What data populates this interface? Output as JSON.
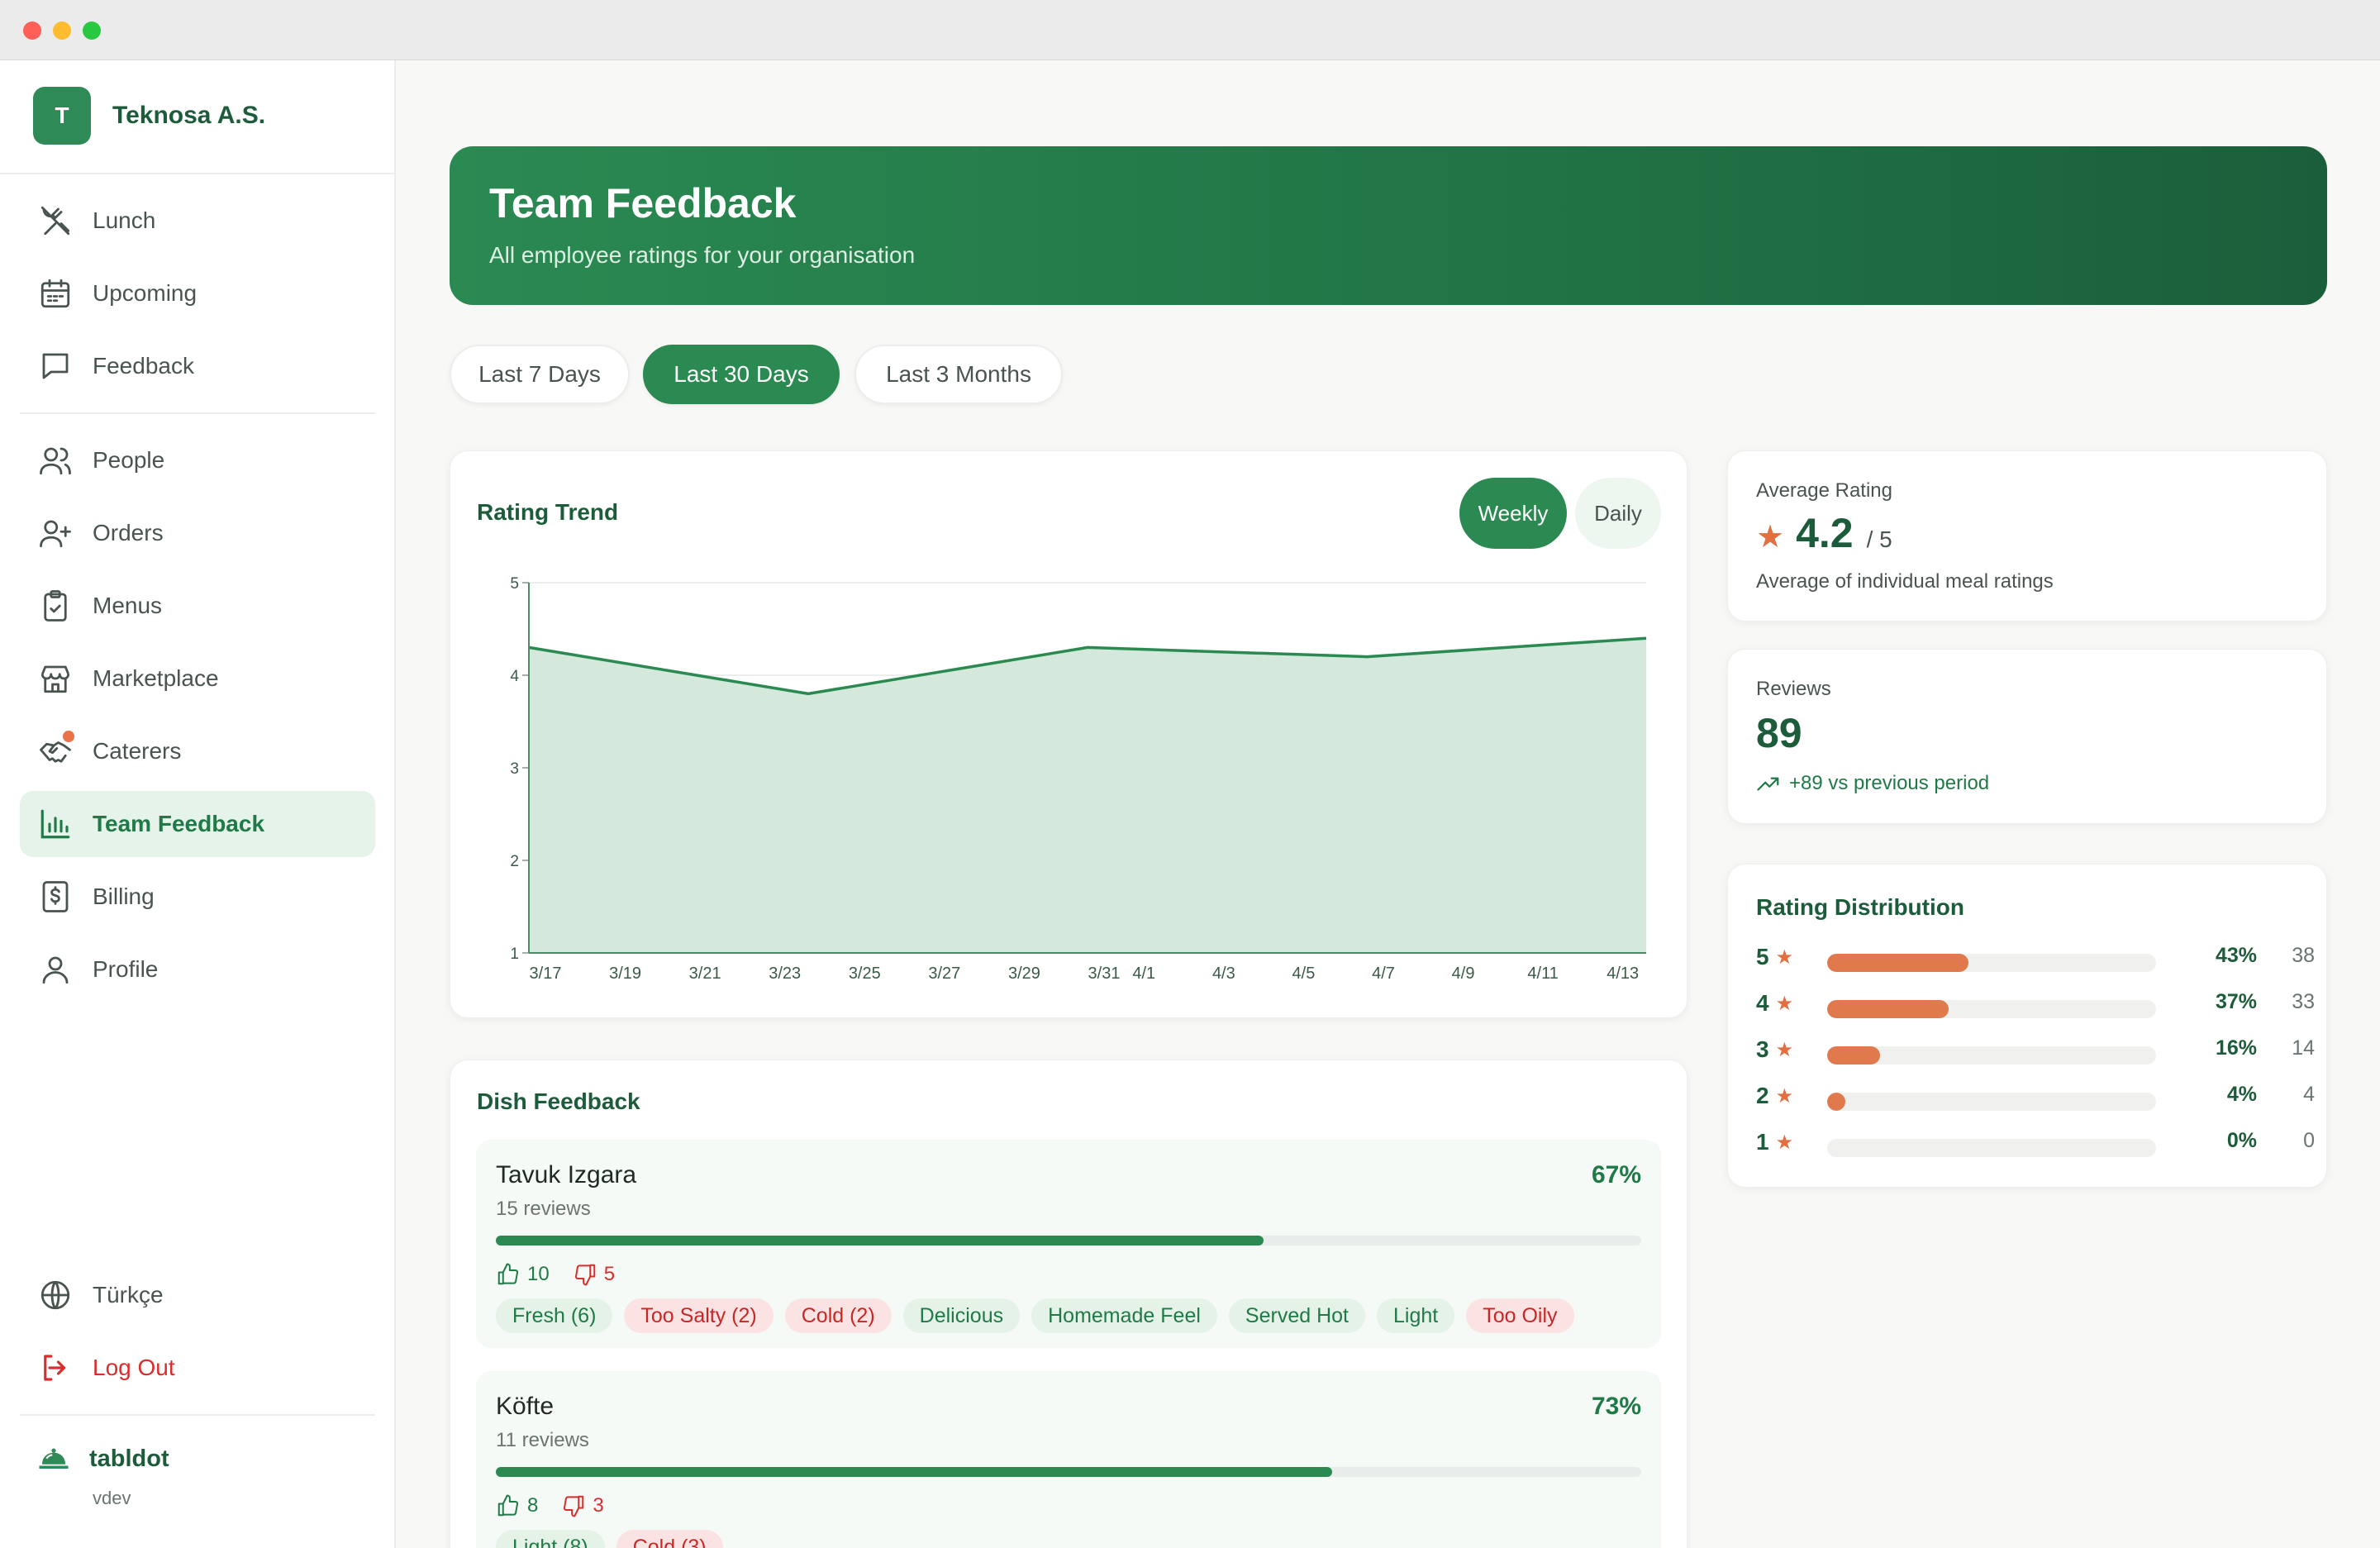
{
  "org": {
    "initial": "T",
    "name": "Teknosa A.S."
  },
  "nav": {
    "group1": [
      {
        "label": "Lunch",
        "icon": "utensils-icon"
      },
      {
        "label": "Upcoming",
        "icon": "calendar-icon"
      },
      {
        "label": "Feedback",
        "icon": "message-square-icon"
      }
    ],
    "group2": [
      {
        "label": "People",
        "icon": "users-icon"
      },
      {
        "label": "Orders",
        "icon": "user-plus-icon"
      },
      {
        "label": "Menus",
        "icon": "clipboard-icon"
      },
      {
        "label": "Marketplace",
        "icon": "store-icon"
      },
      {
        "label": "Caterers",
        "icon": "handshake-icon"
      },
      {
        "label": "Team Feedback",
        "icon": "bar-chart-icon"
      },
      {
        "label": "Billing",
        "icon": "receipt-dollar-icon"
      },
      {
        "label": "Profile",
        "icon": "user-icon"
      }
    ],
    "active": "Team Feedback",
    "language": "Türkçe",
    "logout": "Log Out"
  },
  "footer": {
    "name": "tabldot",
    "sub": "vdev"
  },
  "hero": {
    "title": "Team Feedback",
    "subtitle": "All employee ratings for your organisation"
  },
  "ranges": [
    "Last 7 Days",
    "Last 30 Days",
    "Last 3 Months"
  ],
  "active_range": "Last 30 Days",
  "trend": {
    "title": "Rating Trend",
    "toggle": [
      "Weekly",
      "Daily"
    ],
    "active_toggle": "Weekly"
  },
  "chart_data": {
    "type": "area",
    "title": "Rating Trend",
    "x": [
      "3/17",
      "3/24",
      "3/31",
      "4/7",
      "4/14"
    ],
    "values": [
      4.3,
      3.8,
      4.3,
      4.2,
      4.4
    ],
    "xticks": [
      "3/17",
      "3/19",
      "3/21",
      "3/23",
      "3/25",
      "3/27",
      "3/29",
      "3/31",
      "4/1",
      "4/3",
      "4/5",
      "4/7",
      "4/9",
      "4/11",
      "4/13"
    ],
    "yticks": [
      "1",
      "2",
      "3",
      "4",
      "5"
    ],
    "ylim": [
      1,
      5
    ],
    "grid": true,
    "color": "#2a8a52",
    "fill": "#d4e9dc"
  },
  "average": {
    "label": "Average Rating",
    "value": "4.2",
    "max": "/ 5",
    "note": "Average of individual meal ratings"
  },
  "reviews": {
    "label": "Reviews",
    "value": "89",
    "note": "+89 vs previous period"
  },
  "distribution": {
    "title": "Rating Distribution",
    "rows": [
      {
        "stars": "5",
        "pct": "43%",
        "fraction": 0.43,
        "count": "38"
      },
      {
        "stars": "4",
        "pct": "37%",
        "fraction": 0.37,
        "count": "33"
      },
      {
        "stars": "3",
        "pct": "16%",
        "fraction": 0.16,
        "count": "14"
      },
      {
        "stars": "2",
        "pct": "4%",
        "fraction": 0.04,
        "count": "4"
      },
      {
        "stars": "1",
        "pct": "0%",
        "fraction": 0.0,
        "count": "0"
      }
    ]
  },
  "dish_feedback": {
    "title": "Dish Feedback",
    "dishes": [
      {
        "name": "Tavuk Izgara",
        "reviews": "15 reviews",
        "pct": "67%",
        "fraction": 0.67,
        "up": "10",
        "down": "5",
        "tags": [
          {
            "label": "Fresh",
            "count": "(6)",
            "kind": "pos"
          },
          {
            "label": "Too Salty",
            "count": "(2)",
            "kind": "neg"
          },
          {
            "label": "Cold",
            "count": "(2)",
            "kind": "neg"
          },
          {
            "label": "Delicious",
            "count": "",
            "kind": "pos"
          },
          {
            "label": "Homemade Feel",
            "count": "",
            "kind": "pos"
          },
          {
            "label": "Served Hot",
            "count": "",
            "kind": "pos"
          },
          {
            "label": "Light",
            "count": "",
            "kind": "pos"
          },
          {
            "label": "Too Oily",
            "count": "",
            "kind": "neg"
          }
        ]
      },
      {
        "name": "Köfte",
        "reviews": "11 reviews",
        "pct": "73%",
        "fraction": 0.73,
        "up": "8",
        "down": "3",
        "tags": [
          {
            "label": "Light",
            "count": "(8)",
            "kind": "pos"
          },
          {
            "label": "Cold",
            "count": "(3)",
            "kind": "neg"
          }
        ]
      }
    ]
  }
}
